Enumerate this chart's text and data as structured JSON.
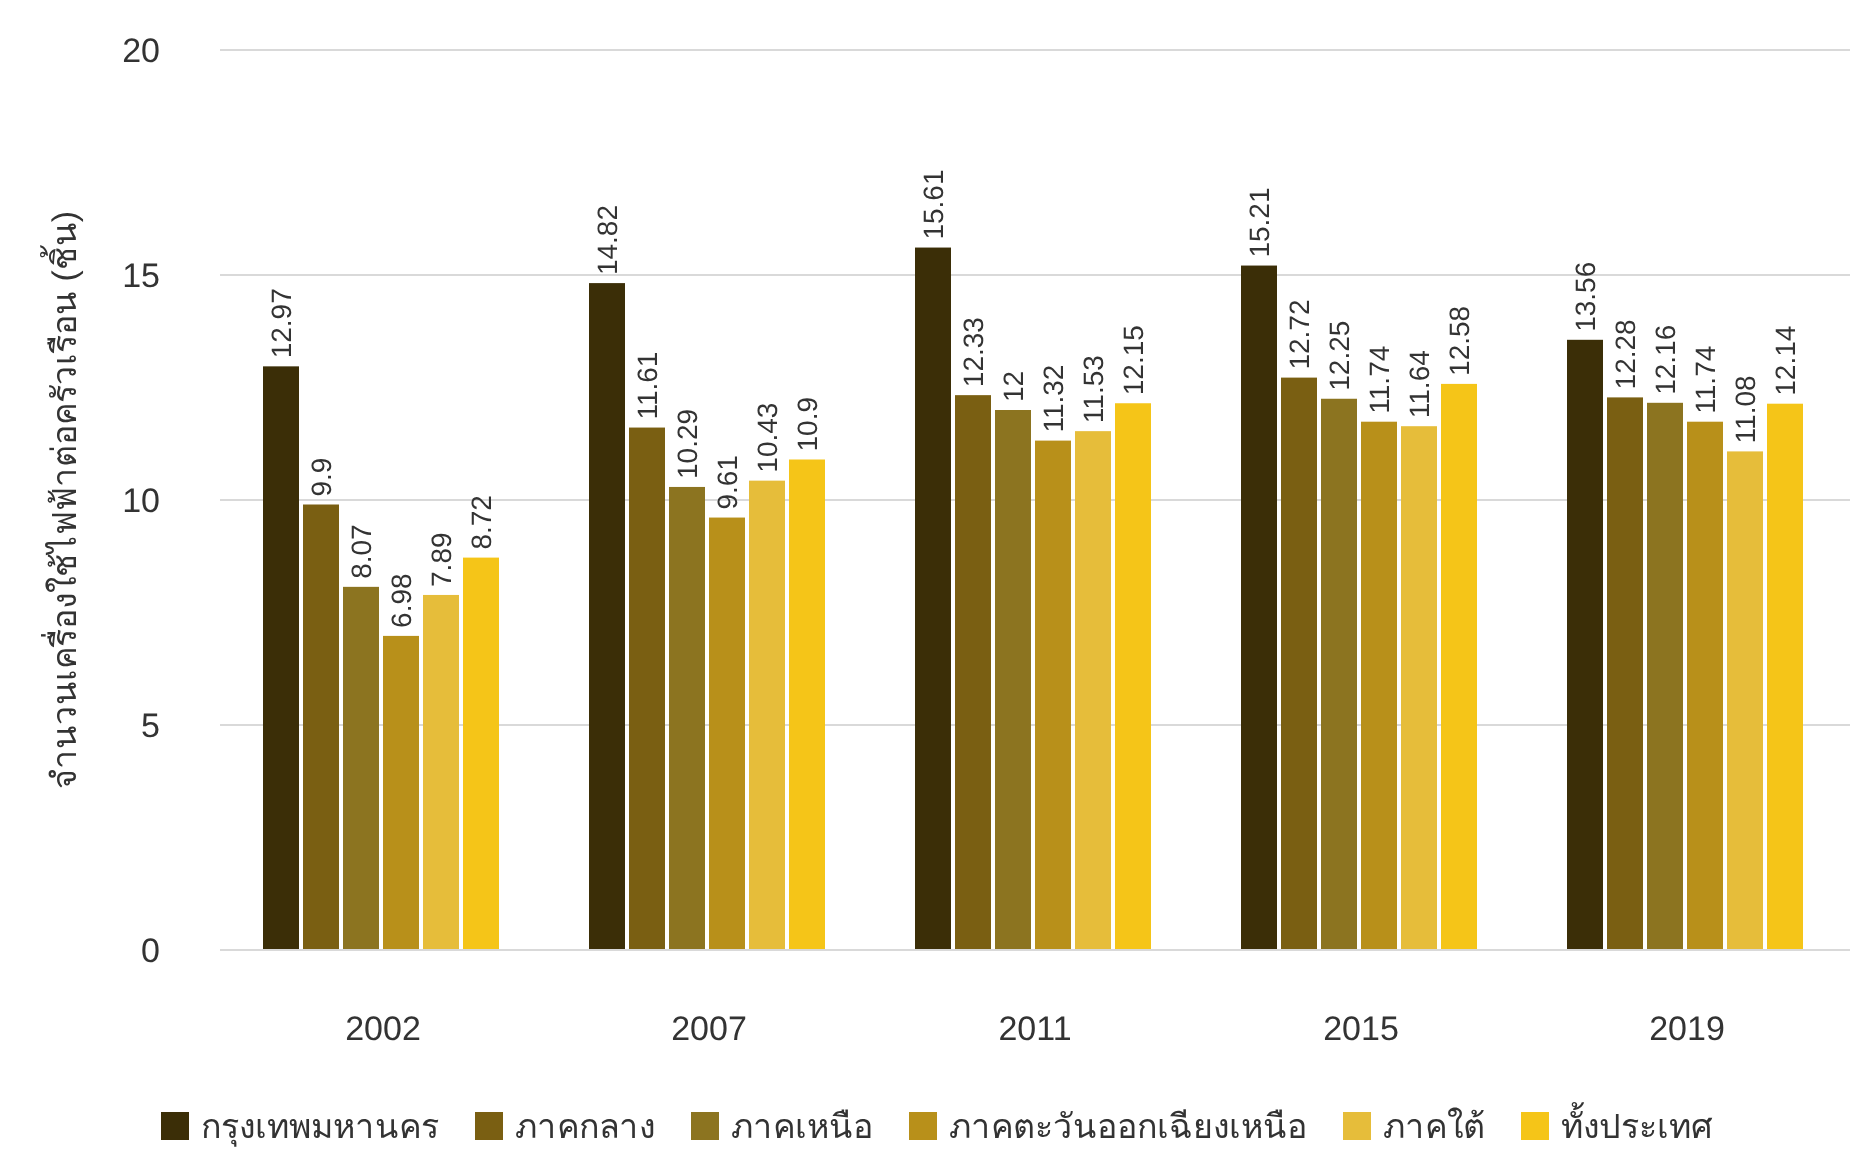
{
  "chart_data": {
    "type": "bar",
    "ylabel": "จำนวนเครื่องใช้ไฟฟ้าต่อครัวเรือน (ชิ้น)",
    "categories": [
      "2002",
      "2007",
      "2011",
      "2015",
      "2019"
    ],
    "series": [
      {
        "name": "กรุงเทพมหานคร",
        "color": "#3b2e07",
        "values": [
          12.97,
          14.82,
          15.61,
          15.21,
          13.56
        ]
      },
      {
        "name": "ภาคกลาง",
        "color": "#7a5f12",
        "values": [
          9.9,
          11.61,
          12.33,
          12.72,
          12.28
        ]
      },
      {
        "name": "ภาคเหนือ",
        "color": "#8c7420",
        "values": [
          8.07,
          10.29,
          12,
          12.25,
          12.16
        ]
      },
      {
        "name": "ภาคตะวันออกเฉียงเหนือ",
        "color": "#b8901a",
        "values": [
          6.98,
          9.61,
          11.32,
          11.74,
          11.74
        ]
      },
      {
        "name": "ภาคใต้",
        "color": "#e6bd3a",
        "values": [
          7.89,
          10.43,
          11.53,
          11.64,
          11.08
        ]
      },
      {
        "name": "ทั้งประเทศ",
        "color": "#f5c518",
        "values": [
          8.72,
          10.9,
          12.15,
          12.58,
          12.14
        ]
      }
    ],
    "ylim": [
      0,
      20
    ],
    "yticks": [
      0,
      5,
      10,
      15,
      20
    ],
    "grid": "y",
    "legend": "bottom",
    "data_labels": true
  }
}
